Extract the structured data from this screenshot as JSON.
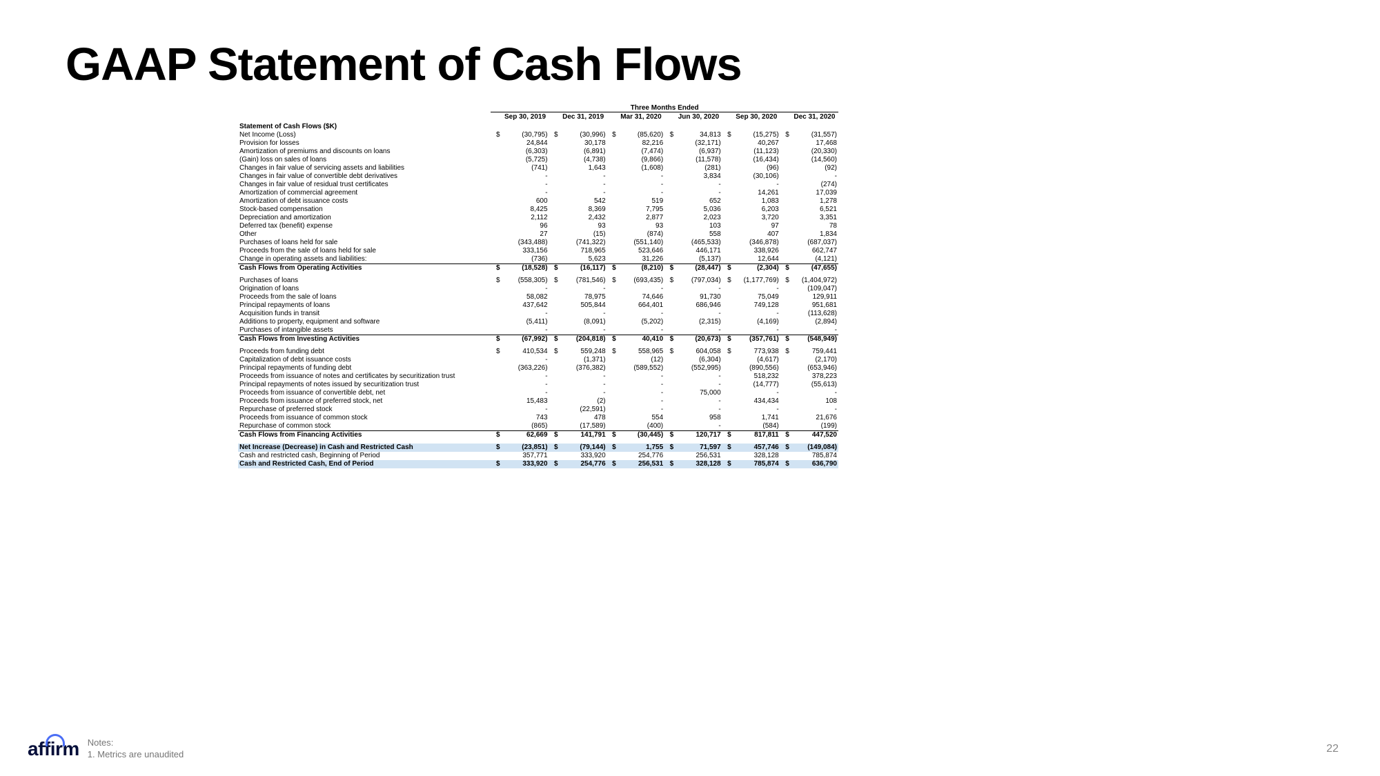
{
  "title": "GAAP Statement of Cash Flows",
  "super_header": "Three Months Ended",
  "columns": [
    "Sep 30, 2019",
    "Dec 31, 2019",
    "Mar 31, 2020",
    "Jun 30, 2020",
    "Sep 30, 2020",
    "Dec 31, 2020"
  ],
  "section1_title": "Statement of Cash Flows ($K)",
  "rows_operating": [
    {
      "label": "Net Income (Loss)",
      "sym": "$",
      "v": [
        "(30,795)",
        "(30,996)",
        "(85,620)",
        "34,813",
        "(15,275)",
        "(31,557)"
      ]
    },
    {
      "label": "Provision for losses",
      "sym": "",
      "v": [
        "24,844",
        "30,178",
        "82,216",
        "(32,171)",
        "40,267",
        "17,468"
      ]
    },
    {
      "label": "Amortization of premiums and discounts on loans",
      "sym": "",
      "v": [
        "(6,303)",
        "(6,891)",
        "(7,474)",
        "(6,937)",
        "(11,123)",
        "(20,330)"
      ]
    },
    {
      "label": "(Gain) loss on sales of loans",
      "sym": "",
      "v": [
        "(5,725)",
        "(4,738)",
        "(9,866)",
        "(11,578)",
        "(16,434)",
        "(14,560)"
      ]
    },
    {
      "label": "Changes in fair value of servicing assets and liabilities",
      "sym": "",
      "v": [
        "(741)",
        "1,643",
        "(1,608)",
        "(281)",
        "(96)",
        "(92)"
      ]
    },
    {
      "label": "Changes in fair value of convertible debt derivatives",
      "sym": "",
      "v": [
        "-",
        "-",
        "-",
        "3,834",
        "(30,106)",
        "-"
      ]
    },
    {
      "label": "Changes in fair value of residual trust certificates",
      "sym": "",
      "v": [
        "-",
        "-",
        "-",
        "-",
        "-",
        "(274)"
      ]
    },
    {
      "label": "Amortization of commercial agreement",
      "sym": "",
      "v": [
        "-",
        "-",
        "-",
        "-",
        "14,261",
        "17,039"
      ]
    },
    {
      "label": "Amortization of debt issuance costs",
      "sym": "",
      "v": [
        "600",
        "542",
        "519",
        "652",
        "1,083",
        "1,278"
      ]
    },
    {
      "label": "Stock-based compensation",
      "sym": "",
      "v": [
        "8,425",
        "8,369",
        "7,795",
        "5,036",
        "6,203",
        "6,521"
      ]
    },
    {
      "label": "Depreciation and amortization",
      "sym": "",
      "v": [
        "2,112",
        "2,432",
        "2,877",
        "2,023",
        "3,720",
        "3,351"
      ]
    },
    {
      "label": "Deferred tax (benefit) expense",
      "sym": "",
      "v": [
        "96",
        "93",
        "93",
        "103",
        "97",
        "78"
      ]
    },
    {
      "label": "Other",
      "sym": "",
      "v": [
        "27",
        "(15)",
        "(874)",
        "558",
        "407",
        "1,834"
      ]
    },
    {
      "label": "Purchases of loans held for sale",
      "sym": "",
      "v": [
        "(343,488)",
        "(741,322)",
        "(551,140)",
        "(465,533)",
        "(346,878)",
        "(687,037)"
      ]
    },
    {
      "label": "Proceeds from the sale of loans held for sale",
      "sym": "",
      "v": [
        "333,156",
        "718,965",
        "523,646",
        "446,171",
        "338,926",
        "662,747"
      ]
    },
    {
      "label": "Change in operating assets and liabilities:",
      "sym": "",
      "v": [
        "(736)",
        "5,623",
        "31,226",
        "(5,137)",
        "12,644",
        "(4,121)"
      ]
    }
  ],
  "subtotal_operating": {
    "label": "Cash Flows from Operating Activities",
    "sym": "$",
    "v": [
      "(18,528)",
      "(16,117)",
      "(8,210)",
      "(28,447)",
      "(2,304)",
      "(47,655)"
    ]
  },
  "rows_investing": [
    {
      "label": "Purchases of loans",
      "sym": "$",
      "v": [
        "(558,305)",
        "(781,546)",
        "(693,435)",
        "(797,034)",
        "(1,177,769)",
        "(1,404,972)"
      ]
    },
    {
      "label": "Origination of loans",
      "sym": "",
      "v": [
        "-",
        "-",
        "-",
        "-",
        "-",
        "(109,047)"
      ]
    },
    {
      "label": "Proceeds from the sale of loans",
      "sym": "",
      "v": [
        "58,082",
        "78,975",
        "74,646",
        "91,730",
        "75,049",
        "129,911"
      ]
    },
    {
      "label": "Principal repayments of loans",
      "sym": "",
      "v": [
        "437,642",
        "505,844",
        "664,401",
        "686,946",
        "749,128",
        "951,681"
      ]
    },
    {
      "label": "Acquisition funds in transit",
      "sym": "",
      "v": [
        "-",
        "-",
        "-",
        "-",
        "-",
        "(113,628)"
      ]
    },
    {
      "label": "Additions to property, equipment and software",
      "sym": "",
      "v": [
        "(5,411)",
        "(8,091)",
        "(5,202)",
        "(2,315)",
        "(4,169)",
        "(2,894)"
      ]
    },
    {
      "label": "Purchases of intangible assets",
      "sym": "",
      "v": [
        "-",
        "-",
        "-",
        "-",
        "-",
        "-"
      ]
    }
  ],
  "subtotal_investing": {
    "label": "Cash Flows from Investing Activities",
    "sym": "$",
    "v": [
      "(67,992)",
      "(204,818)",
      "40,410",
      "(20,673)",
      "(357,761)",
      "(548,949)"
    ]
  },
  "rows_financing": [
    {
      "label": "Proceeds from funding debt",
      "sym": "$",
      "v": [
        "410,534",
        "559,248",
        "558,965",
        "604,058",
        "773,938",
        "759,441"
      ]
    },
    {
      "label": "Capitalization of debt issuance costs",
      "sym": "",
      "v": [
        "-",
        "(1,371)",
        "(12)",
        "(6,304)",
        "(4,617)",
        "(2,170)"
      ]
    },
    {
      "label": "Principal repayments of funding debt",
      "sym": "",
      "v": [
        "(363,226)",
        "(376,382)",
        "(589,552)",
        "(552,995)",
        "(890,556)",
        "(653,946)"
      ]
    },
    {
      "label": "Proceeds from issuance of notes and certificates by securitization trust",
      "sym": "",
      "v": [
        "-",
        "-",
        "-",
        "-",
        "518,232",
        "378,223"
      ]
    },
    {
      "label": "Principal repayments of notes issued by securitization trust",
      "sym": "",
      "v": [
        "-",
        "-",
        "-",
        "-",
        "(14,777)",
        "(55,613)"
      ]
    },
    {
      "label": "Proceeds from issuance of convertible debt, net",
      "sym": "",
      "v": [
        "-",
        "-",
        "-",
        "75,000",
        "-",
        "-"
      ]
    },
    {
      "label": "Proceeds from issuance of preferred stock, net",
      "sym": "",
      "v": [
        "15,483",
        "(2)",
        "-",
        "-",
        "434,434",
        "108"
      ]
    },
    {
      "label": "Repurchase of preferred stock",
      "sym": "",
      "v": [
        "-",
        "(22,591)",
        "-",
        "-",
        "-",
        "-"
      ]
    },
    {
      "label": "Proceeds from issuance of common stock",
      "sym": "",
      "v": [
        "743",
        "478",
        "554",
        "958",
        "1,741",
        "21,676"
      ]
    },
    {
      "label": "Repurchase of common stock",
      "sym": "",
      "v": [
        "(865)",
        "(17,589)",
        "(400)",
        "-",
        "(584)",
        "(199)"
      ]
    }
  ],
  "subtotal_financing": {
    "label": "Cash Flows from Financing Activities",
    "sym": "$",
    "v": [
      "62,669",
      "141,791",
      "(30,445)",
      "120,717",
      "817,811",
      "447,520"
    ]
  },
  "net_increase": {
    "label": "Net Increase (Decrease) in Cash and Restricted Cash",
    "sym": "$",
    "v": [
      "(23,851)",
      "(79,144)",
      "1,755",
      "71,597",
      "457,746",
      "(149,084)"
    ]
  },
  "cash_begin": {
    "label": "Cash and restricted cash, Beginning of Period",
    "sym": "",
    "v": [
      "357,771",
      "333,920",
      "254,776",
      "256,531",
      "328,128",
      "785,874"
    ]
  },
  "cash_end": {
    "label": "Cash and Restricted Cash, End of Period",
    "sym": "$",
    "v": [
      "333,920",
      "254,776",
      "256,531",
      "328,128",
      "785,874",
      "636,790"
    ]
  },
  "logo_text": "affirm",
  "notes_l1": "Notes:",
  "notes_l2": "1. Metrics are unaudited",
  "page_num": "22"
}
